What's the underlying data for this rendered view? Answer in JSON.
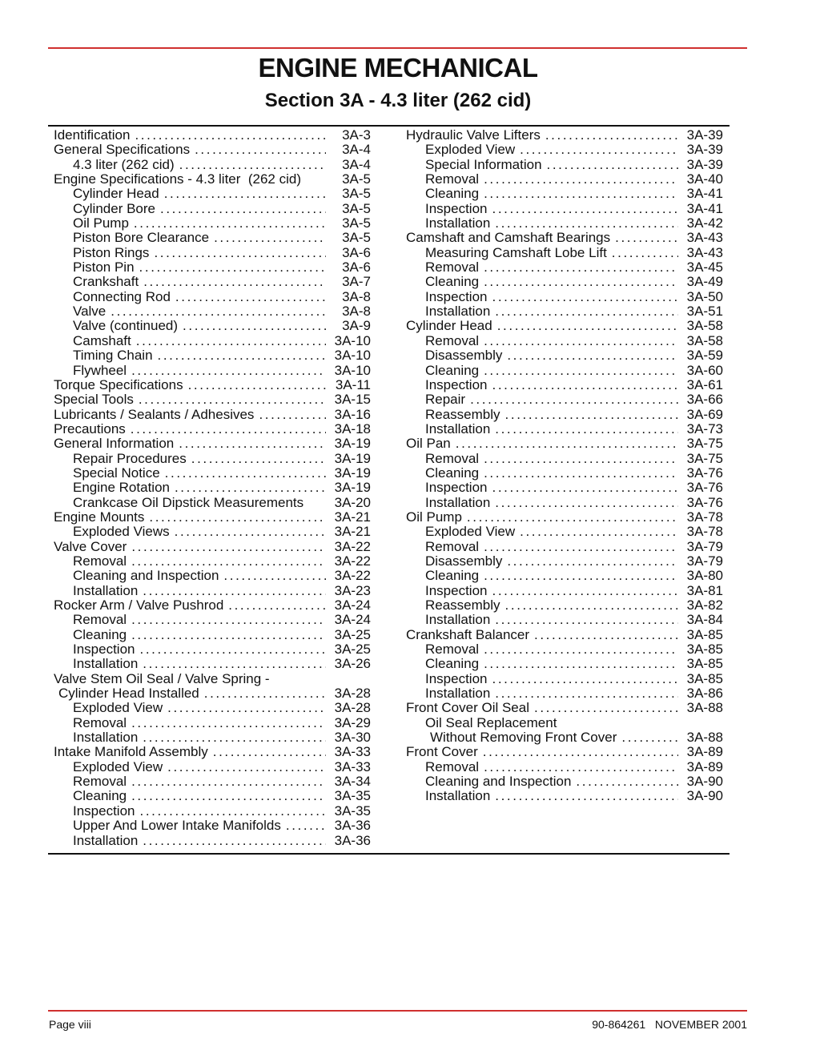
{
  "header": {
    "title": "ENGINE MECHANICAL",
    "subtitle": "Section 3A - 4.3 liter (262 cid)"
  },
  "colors": {
    "accent_rule": "#d0302f",
    "rule": "#111111"
  },
  "toc": {
    "left": [
      {
        "level": 0,
        "label": "Identification",
        "page": "3A-3"
      },
      {
        "level": 0,
        "label": "General Specifications",
        "page": "3A-4"
      },
      {
        "level": 1,
        "label": "4.3 liter (262 cid)",
        "page": "3A-4"
      },
      {
        "level": 0,
        "label": "Engine Specifications - 4.3 liter  (262 cid)",
        "page": "3A-5",
        "noleader": true
      },
      {
        "level": 1,
        "label": "Cylinder Head",
        "page": "3A-5"
      },
      {
        "level": 1,
        "label": "Cylinder Bore",
        "page": "3A-5"
      },
      {
        "level": 1,
        "label": "Oil Pump",
        "page": "3A-5"
      },
      {
        "level": 1,
        "label": "Piston Bore Clearance",
        "page": "3A-5"
      },
      {
        "level": 1,
        "label": "Piston Rings",
        "page": "3A-6"
      },
      {
        "level": 1,
        "label": "Piston Pin",
        "page": "3A-6"
      },
      {
        "level": 1,
        "label": "Crankshaft",
        "page": "3A-7"
      },
      {
        "level": 1,
        "label": "Connecting Rod",
        "page": "3A-8"
      },
      {
        "level": 1,
        "label": "Valve",
        "page": "3A-8"
      },
      {
        "level": 1,
        "label": "Valve (continued)",
        "page": "3A-9"
      },
      {
        "level": 1,
        "label": "Camshaft",
        "page": "3A-10"
      },
      {
        "level": 1,
        "label": "Timing Chain",
        "page": "3A-10"
      },
      {
        "level": 1,
        "label": "Flywheel",
        "page": "3A-10"
      },
      {
        "level": 0,
        "label": "Torque Specifications",
        "page": "3A-11"
      },
      {
        "level": 0,
        "label": "Special Tools",
        "page": "3A-15"
      },
      {
        "level": 0,
        "label": "Lubricants / Sealants / Adhesives",
        "page": "3A-16"
      },
      {
        "level": 0,
        "label": "Precautions",
        "page": "3A-18"
      },
      {
        "level": 0,
        "label": "General Information",
        "page": "3A-19"
      },
      {
        "level": 1,
        "label": "Repair Procedures",
        "page": "3A-19"
      },
      {
        "level": 1,
        "label": "Special Notice",
        "page": "3A-19"
      },
      {
        "level": 1,
        "label": "Engine Rotation",
        "page": "3A-19"
      },
      {
        "level": 1,
        "label": "Crankcase Oil Dipstick Measurements",
        "page": "3A-20",
        "noleader": true
      },
      {
        "level": 0,
        "label": "Engine Mounts",
        "page": "3A-21"
      },
      {
        "level": 1,
        "label": "Exploded Views",
        "page": "3A-21"
      },
      {
        "level": 0,
        "label": "Valve Cover",
        "page": "3A-22"
      },
      {
        "level": 1,
        "label": "Removal",
        "page": "3A-22"
      },
      {
        "level": 1,
        "label": "Cleaning and Inspection",
        "page": "3A-22"
      },
      {
        "level": 1,
        "label": "Installation",
        "page": "3A-23"
      },
      {
        "level": 0,
        "label": "Rocker Arm / Valve Pushrod",
        "page": "3A-24"
      },
      {
        "level": 1,
        "label": "Removal",
        "page": "3A-24"
      },
      {
        "level": 1,
        "label": "Cleaning",
        "page": "3A-25"
      },
      {
        "level": 1,
        "label": "Inspection",
        "page": "3A-25"
      },
      {
        "level": 1,
        "label": "Installation",
        "page": "3A-26"
      },
      {
        "level": 0,
        "label": "Valve Stem Oil Seal / Valve Spring -",
        "page": "",
        "noleader": true
      },
      {
        "level": 0.25,
        "label": "Cylinder Head Installed",
        "page": "3A-28"
      },
      {
        "level": 1,
        "label": "Exploded View",
        "page": "3A-28"
      },
      {
        "level": 1,
        "label": "Removal",
        "page": "3A-29"
      },
      {
        "level": 1,
        "label": "Installation",
        "page": "3A-30"
      },
      {
        "level": 0,
        "label": "Intake Manifold Assembly",
        "page": "3A-33"
      },
      {
        "level": 1,
        "label": "Exploded View",
        "page": "3A-33"
      },
      {
        "level": 1,
        "label": "Removal",
        "page": "3A-34"
      },
      {
        "level": 1,
        "label": "Cleaning",
        "page": "3A-35"
      },
      {
        "level": 1,
        "label": "Inspection",
        "page": "3A-35"
      },
      {
        "level": 1,
        "label": "Upper And Lower Intake Manifolds",
        "page": "3A-36"
      },
      {
        "level": 1,
        "label": "Installation",
        "page": "3A-36"
      }
    ],
    "right": [
      {
        "level": 0,
        "label": "Hydraulic Valve Lifters",
        "page": "3A-39"
      },
      {
        "level": 1,
        "label": "Exploded View",
        "page": "3A-39"
      },
      {
        "level": 1,
        "label": "Special Information",
        "page": "3A-39"
      },
      {
        "level": 1,
        "label": "Removal",
        "page": "3A-40"
      },
      {
        "level": 1,
        "label": "Cleaning",
        "page": "3A-41"
      },
      {
        "level": 1,
        "label": "Inspection",
        "page": "3A-41"
      },
      {
        "level": 1,
        "label": "Installation",
        "page": "3A-42"
      },
      {
        "level": 0,
        "label": "Camshaft and Camshaft Bearings",
        "page": "3A-43"
      },
      {
        "level": 1,
        "label": "Measuring Camshaft Lobe Lift",
        "page": "3A-43"
      },
      {
        "level": 1,
        "label": "Removal",
        "page": "3A-45"
      },
      {
        "level": 1,
        "label": "Cleaning",
        "page": "3A-49"
      },
      {
        "level": 1,
        "label": "Inspection",
        "page": "3A-50"
      },
      {
        "level": 1,
        "label": "Installation",
        "page": "3A-51"
      },
      {
        "level": 0,
        "label": "Cylinder Head",
        "page": "3A-58"
      },
      {
        "level": 1,
        "label": "Removal",
        "page": "3A-58"
      },
      {
        "level": 1,
        "label": "Disassembly",
        "page": "3A-59"
      },
      {
        "level": 1,
        "label": "Cleaning",
        "page": "3A-60"
      },
      {
        "level": 1,
        "label": "Inspection",
        "page": "3A-61"
      },
      {
        "level": 1,
        "label": "Repair",
        "page": "3A-66"
      },
      {
        "level": 1,
        "label": "Reassembly",
        "page": "3A-69"
      },
      {
        "level": 1,
        "label": "Installation",
        "page": "3A-73"
      },
      {
        "level": 0,
        "label": "Oil Pan",
        "page": "3A-75"
      },
      {
        "level": 1,
        "label": "Removal",
        "page": "3A-75"
      },
      {
        "level": 1,
        "label": "Cleaning",
        "page": "3A-76"
      },
      {
        "level": 1,
        "label": "Inspection",
        "page": "3A-76"
      },
      {
        "level": 1,
        "label": "Installation",
        "page": "3A-76"
      },
      {
        "level": 0,
        "label": "Oil Pump",
        "page": "3A-78"
      },
      {
        "level": 1,
        "label": "Exploded View",
        "page": "3A-78"
      },
      {
        "level": 1,
        "label": "Removal",
        "page": "3A-79"
      },
      {
        "level": 1,
        "label": "Disassembly",
        "page": "3A-79"
      },
      {
        "level": 1,
        "label": "Cleaning",
        "page": "3A-80"
      },
      {
        "level": 1,
        "label": "Inspection",
        "page": "3A-81"
      },
      {
        "level": 1,
        "label": "Reassembly",
        "page": "3A-82"
      },
      {
        "level": 1,
        "label": "Installation",
        "page": "3A-84"
      },
      {
        "level": 0,
        "label": "Crankshaft Balancer",
        "page": "3A-85"
      },
      {
        "level": 1,
        "label": "Removal",
        "page": "3A-85"
      },
      {
        "level": 1,
        "label": "Cleaning",
        "page": "3A-85"
      },
      {
        "level": 1,
        "label": "Inspection",
        "page": "3A-85"
      },
      {
        "level": 1,
        "label": "Installation",
        "page": "3A-86"
      },
      {
        "level": 0,
        "label": "Front Cover Oil Seal",
        "page": "3A-88"
      },
      {
        "level": 1,
        "label": "Oil Seal Replacement",
        "page": "",
        "noleader": true
      },
      {
        "level": 1.25,
        "label": "Without Removing Front Cover",
        "page": "3A-88"
      },
      {
        "level": 0,
        "label": "Front Cover",
        "page": "3A-89"
      },
      {
        "level": 1,
        "label": "Removal",
        "page": "3A-89"
      },
      {
        "level": 1,
        "label": "Cleaning and Inspection",
        "page": "3A-90"
      },
      {
        "level": 1,
        "label": "Installation",
        "page": "3A-90"
      }
    ]
  },
  "footer": {
    "page": "Page viii",
    "doc": "90-864261   NOVEMBER 2001"
  }
}
